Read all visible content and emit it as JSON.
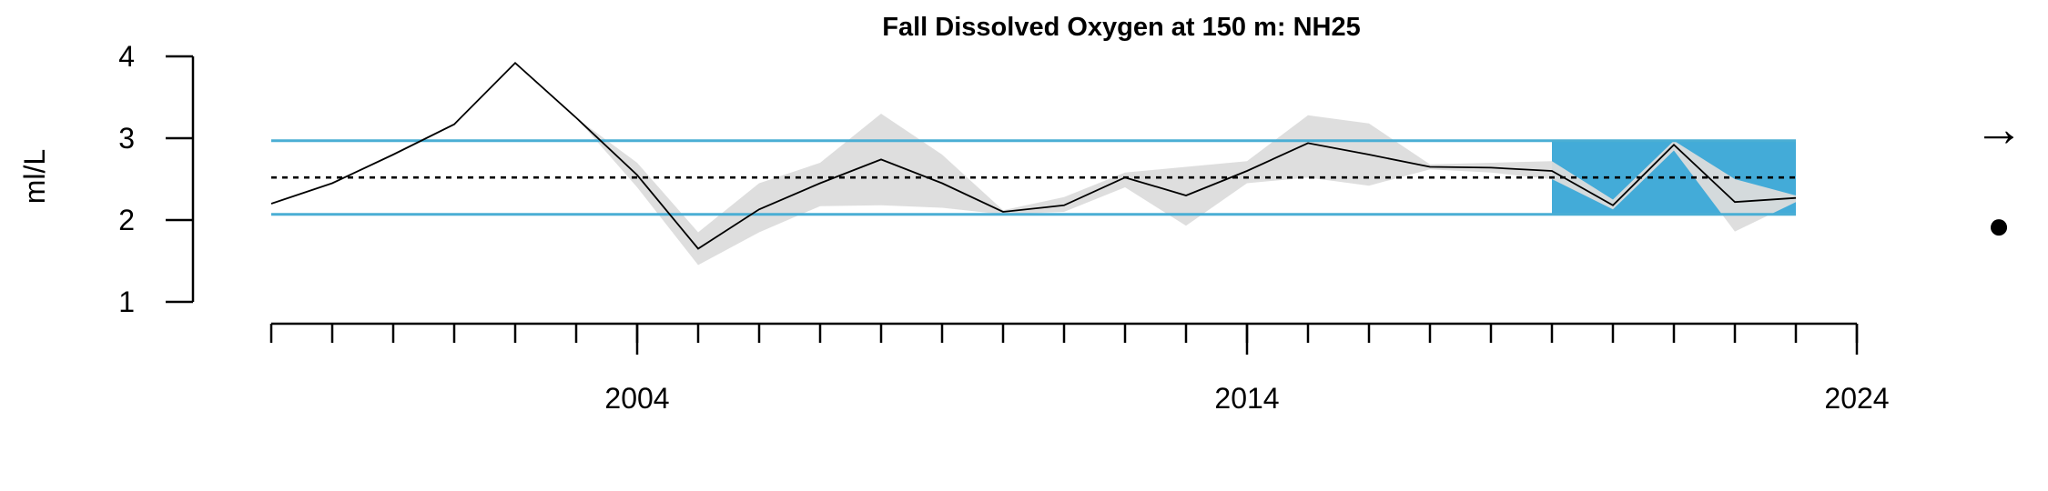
{
  "chart_data": {
    "type": "line",
    "title": "Fall Dissolved Oxygen at 150 m: NH25",
    "ylabel": "ml/L",
    "xlabel": "",
    "ylim": [
      1,
      4
    ],
    "yticks": [
      1,
      2,
      3,
      4
    ],
    "xlim": [
      1998,
      2024
    ],
    "xtick_labels": [
      2004,
      2014,
      2024
    ],
    "minor_ticks_every": 1,
    "grid": false,
    "mean": 2.52,
    "sd_band": [
      2.07,
      2.97
    ],
    "recent_window": {
      "from": 2019,
      "to": 2023
    },
    "series": [
      {
        "x": [
          1998,
          1999,
          2000,
          2001,
          2002,
          2003,
          2004,
          2005,
          2006,
          2007,
          2008,
          2009,
          2010,
          2011,
          2012,
          2013,
          2014,
          2015,
          2016,
          2017,
          2018,
          2019,
          2020,
          2021,
          2022,
          2023
        ],
        "values": [
          2.2,
          2.45,
          2.8,
          3.17,
          3.92,
          3.25,
          2.55,
          1.65,
          2.13,
          2.45,
          2.74,
          2.45,
          2.1,
          2.18,
          2.52,
          2.3,
          2.6,
          2.94,
          2.8,
          2.65,
          2.64,
          2.6,
          2.18,
          2.92,
          2.22,
          2.27
        ],
        "lower": [
          2.2,
          2.45,
          2.8,
          3.17,
          3.92,
          3.25,
          2.4,
          1.45,
          1.85,
          2.17,
          2.18,
          2.15,
          2.07,
          2.1,
          2.4,
          1.93,
          2.45,
          2.52,
          2.42,
          2.62,
          2.58,
          2.5,
          2.13,
          2.85,
          1.86,
          2.22
        ],
        "upper": [
          2.2,
          2.45,
          2.8,
          3.17,
          3.92,
          3.25,
          2.7,
          1.85,
          2.45,
          2.7,
          3.3,
          2.8,
          2.12,
          2.28,
          2.58,
          2.65,
          2.72,
          3.28,
          3.18,
          2.68,
          2.7,
          2.72,
          2.25,
          2.97,
          2.5,
          2.3
        ]
      }
    ],
    "colors": {
      "band_line": "#4aaed4",
      "recent_fill": "#43abd8",
      "ci_fill": "#dcdcdc",
      "line": "#000000"
    },
    "trend_indicator": {
      "arrow": "→",
      "marker": "●"
    }
  }
}
